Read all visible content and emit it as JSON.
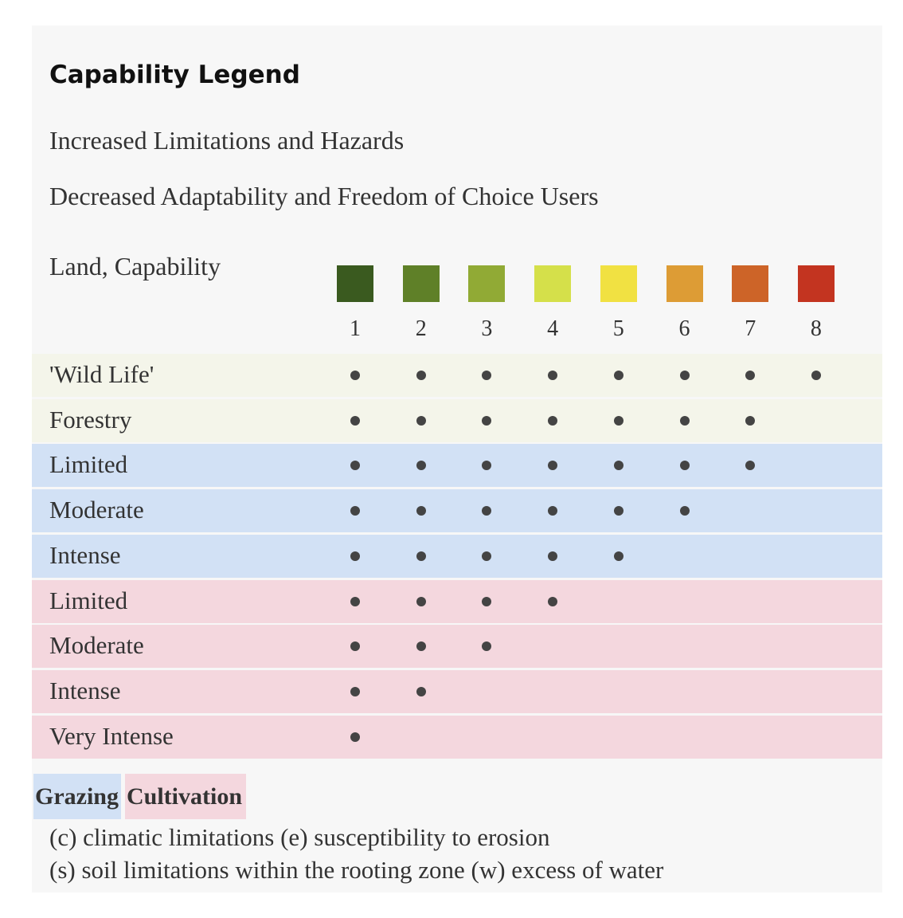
{
  "title": "Capability Legend",
  "subtitle_1": "Increased Limitations and Hazards",
  "subtitle_2": "Decreased Adaptability and Freedom of Choice Users",
  "land_capability_label": "Land, Capability",
  "classes": [
    {
      "label": "1",
      "color": "#3a5a1f"
    },
    {
      "label": "2",
      "color": "#5f8028"
    },
    {
      "label": "3",
      "color": "#91aa35"
    },
    {
      "label": "4",
      "color": "#d5e04a"
    },
    {
      "label": "5",
      "color": "#f1e142"
    },
    {
      "label": "6",
      "color": "#dd9c35"
    },
    {
      "label": "7",
      "color": "#cd6428"
    },
    {
      "label": "8",
      "color": "#c33420"
    }
  ],
  "rows": [
    {
      "label": "'Wild Life'",
      "group": "wild",
      "max_class": 8
    },
    {
      "label": "Forestry",
      "group": "wild",
      "max_class": 7
    },
    {
      "label": "Limited",
      "group": "graze",
      "max_class": 7
    },
    {
      "label": "Moderate",
      "group": "graze",
      "max_class": 6
    },
    {
      "label": "Intense",
      "group": "graze",
      "max_class": 5
    },
    {
      "label": "Limited",
      "group": "cult",
      "max_class": 4
    },
    {
      "label": "Moderate",
      "group": "cult",
      "max_class": 3
    },
    {
      "label": "Intense",
      "group": "cult",
      "max_class": 2
    },
    {
      "label": "Very Intense",
      "group": "cult",
      "max_class": 1
    }
  ],
  "key": {
    "grazing": "Grazing",
    "cultivation": "Cultivation",
    "grazing_color": "#d2e1f5",
    "cultivation_color": "#f4d7de"
  },
  "notes": {
    "line_1": "(c) climatic limitations (e) susceptibility to erosion",
    "line_2": "(s) soil limitations within the rooting zone (w) excess of water"
  }
}
